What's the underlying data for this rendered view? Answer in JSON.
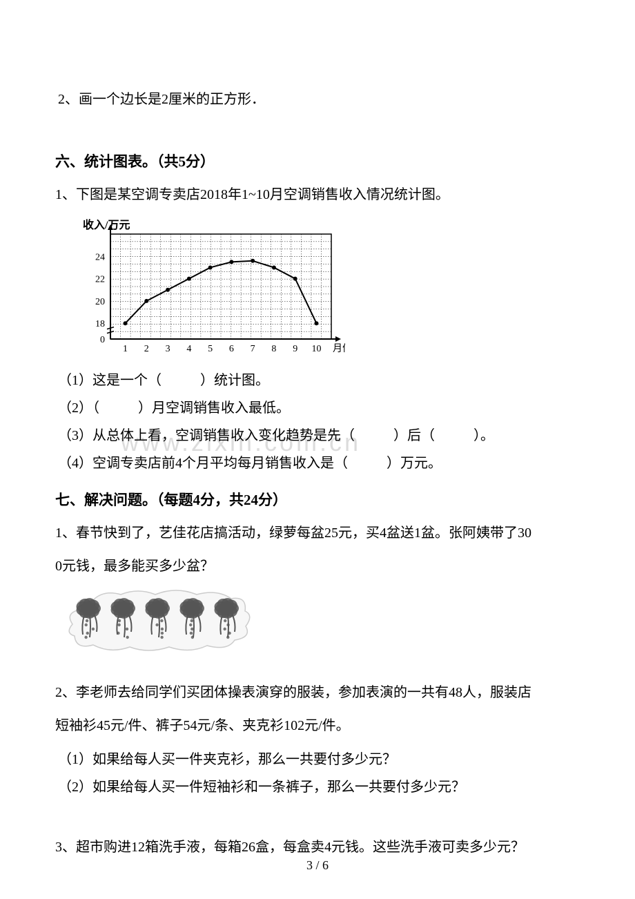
{
  "q2_draw": "2、画一个边长是2厘米的正方形．",
  "section6": {
    "title": "六、统计图表。（共5分）",
    "intro": "1、下图是某空调专卖店2018年1~10月空调销售收入情况统计图。",
    "chart": {
      "type": "line",
      "y_label": "收入/万元",
      "x_label": "月份",
      "x_ticks": [
        1,
        2,
        3,
        4,
        5,
        6,
        7,
        8,
        9,
        10
      ],
      "y_ticks": [
        0,
        18,
        20,
        22,
        24
      ],
      "y_range": [
        0,
        26
      ],
      "x_range": [
        0,
        11
      ],
      "grid_color": "#000000",
      "line_color": "#000000",
      "point_color": "#000000",
      "background": "#ffffff",
      "line_width": 2,
      "point_radius": 3,
      "data": [
        {
          "x": 1,
          "y": 18
        },
        {
          "x": 2,
          "y": 20
        },
        {
          "x": 3,
          "y": 21
        },
        {
          "x": 4,
          "y": 22
        },
        {
          "x": 5,
          "y": 23
        },
        {
          "x": 6,
          "y": 23.5
        },
        {
          "x": 7,
          "y": 23.6
        },
        {
          "x": 8,
          "y": 23
        },
        {
          "x": 9,
          "y": 22
        },
        {
          "x": 10,
          "y": 18
        }
      ],
      "font_size_axis": 14
    },
    "sub1_a": "（1）这是一个（",
    "sub1_b": "）统计图。",
    "sub2_a": "（2）（",
    "sub2_b": "）月空调销售收入最低。",
    "sub3_a": "（3）从总体上看，空调销售收入变化趋势是先（",
    "sub3_b": "）后（",
    "sub3_c": "）。",
    "sub4_a": "（4）空调专卖店前4个月平均每月销售收入是（",
    "sub4_b": "）万元。"
  },
  "section7": {
    "title": "七、解决问题。（每题4分，共24分）",
    "q1_a": "1、春节快到了，艺佳花店搞活动，绿萝每盆25元，买4盆送1盆。张阿姨带了30",
    "q1_b": "0元钱，最多能买多少盆？",
    "plants": {
      "count": 5,
      "pot_color": "#888888",
      "leaf_color": "#555555",
      "cloud_color": "#cccccc"
    },
    "q2_a": "2、李老师去给同学们买团体操表演穿的服装，参加表演的一共有48人，服装店",
    "q2_b": "短袖衫45元/件、裤子54元/条、夹克衫102元/件。",
    "q2_sub1": "（1）如果给每人买一件夹克衫，那么一共要付多少元？",
    "q2_sub2": "（2）如果给每人买一件短袖衫和一条裤子，那么一共要付多少元？",
    "q3": "3、超市购进12箱洗手液，每箱26盒，每盒卖4元钱。这些洗手液可卖多少元？"
  },
  "watermark": "www.zixin.com.cn",
  "page": "3 / 6"
}
